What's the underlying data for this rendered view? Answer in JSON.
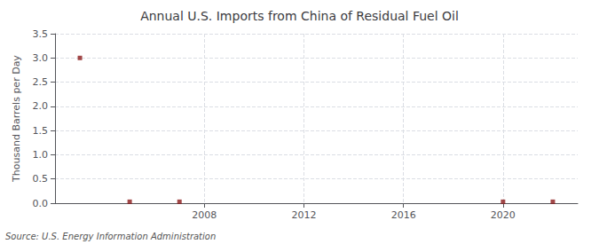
{
  "chart_data": {
    "type": "scatter",
    "title": "Annual U.S. Imports from China of Residual Fuel Oil",
    "ylabel": "Thousand Barrels per Day",
    "annotations": [
      "Source: U.S. Energy Information Administration"
    ],
    "x": [
      2003,
      2005,
      2007,
      2020,
      2022
    ],
    "values": [
      3.0,
      0.03,
      0.03,
      0.03,
      0.03
    ],
    "color": "#8b1a1a",
    "marker": "square",
    "xlim": [
      2002,
      2023
    ],
    "xticks": [
      2008,
      2012,
      2016,
      2020
    ],
    "ylim": [
      0,
      3.5
    ],
    "yticks": [
      {
        "value": 0.0,
        "label": "0.0"
      },
      0.5,
      {
        "value": 1.0,
        "label": "1.0"
      },
      1.5,
      {
        "value": 2.0,
        "label": "2.0"
      },
      2.5,
      {
        "value": 3.0,
        "label": "3.0"
      },
      3.5
    ],
    "grid": true
  }
}
